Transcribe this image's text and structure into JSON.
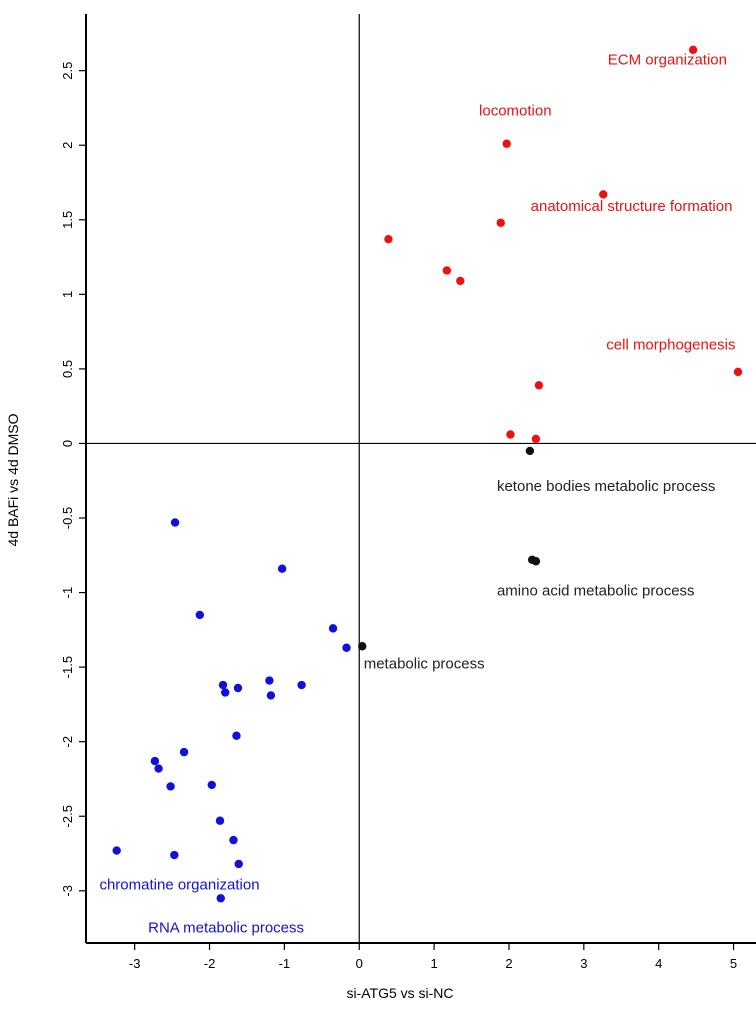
{
  "chart_data": {
    "type": "scatter",
    "title": "",
    "xlabel": "si-ATG5 vs si-NC",
    "ylabel": "4d BAFi vs 4d DMSO",
    "xlim": [
      -3.65,
      5.3
    ],
    "ylim": [
      -3.35,
      2.88
    ],
    "grid": false,
    "reference_lines": {
      "x": 0,
      "y": 0
    },
    "x_ticks": [
      -3,
      -2,
      -1,
      0,
      1,
      2,
      3,
      4,
      5
    ],
    "x_tick_labels": [
      "-3",
      "-2",
      "-1",
      "0",
      "1",
      "2",
      "3",
      "4",
      "5"
    ],
    "y_ticks": [
      -3,
      -2.5,
      -2,
      -1.5,
      -1,
      -0.5,
      0,
      0.5,
      1,
      1.5,
      2,
      2.5
    ],
    "y_tick_labels": [
      "-3",
      "-2.5",
      "-2",
      "-1.5",
      "-1",
      "-0.5",
      "0",
      "0.5",
      "1",
      "1.5",
      "2",
      "2.5"
    ],
    "colors": {
      "up": "#ee1111",
      "down": "#1111dd",
      "other": "#111111"
    },
    "series": [
      {
        "group": "up",
        "color": "#ee1111",
        "points": [
          {
            "x": 4.46,
            "y": 2.64
          },
          {
            "x": 1.97,
            "y": 2.01
          },
          {
            "x": 3.26,
            "y": 1.67
          },
          {
            "x": 1.89,
            "y": 1.48
          },
          {
            "x": 0.39,
            "y": 1.37
          },
          {
            "x": 1.17,
            "y": 1.16
          },
          {
            "x": 1.35,
            "y": 1.09
          },
          {
            "x": 5.06,
            "y": 0.48
          },
          {
            "x": 2.4,
            "y": 0.39
          },
          {
            "x": 2.02,
            "y": 0.06
          },
          {
            "x": 2.36,
            "y": 0.03
          }
        ]
      },
      {
        "group": "down",
        "color": "#1111dd",
        "points": [
          {
            "x": -2.46,
            "y": -0.53
          },
          {
            "x": -1.03,
            "y": -0.84
          },
          {
            "x": -2.13,
            "y": -1.15
          },
          {
            "x": -0.35,
            "y": -1.24
          },
          {
            "x": -0.17,
            "y": -1.37
          },
          {
            "x": -1.2,
            "y": -1.59
          },
          {
            "x": -0.77,
            "y": -1.62
          },
          {
            "x": -1.82,
            "y": -1.62
          },
          {
            "x": -1.62,
            "y": -1.64
          },
          {
            "x": -1.79,
            "y": -1.67
          },
          {
            "x": -1.18,
            "y": -1.69
          },
          {
            "x": -1.64,
            "y": -1.96
          },
          {
            "x": -2.34,
            "y": -2.07
          },
          {
            "x": -2.73,
            "y": -2.13
          },
          {
            "x": -2.68,
            "y": -2.18
          },
          {
            "x": -2.52,
            "y": -2.3
          },
          {
            "x": -1.97,
            "y": -2.29
          },
          {
            "x": -1.86,
            "y": -2.53
          },
          {
            "x": -1.68,
            "y": -2.66
          },
          {
            "x": -3.24,
            "y": -2.73
          },
          {
            "x": -2.47,
            "y": -2.76
          },
          {
            "x": -1.61,
            "y": -2.82
          },
          {
            "x": -1.85,
            "y": -3.05
          }
        ]
      },
      {
        "group": "other",
        "color": "#111111",
        "points": [
          {
            "x": 2.28,
            "y": -0.05
          },
          {
            "x": 2.31,
            "y": -0.78
          },
          {
            "x": 2.36,
            "y": -0.79
          },
          {
            "x": 0.04,
            "y": -1.36
          }
        ]
      }
    ],
    "annotations": [
      {
        "text": "ECM organization",
        "x": 3.32,
        "y": 2.54,
        "color": "#ee1111"
      },
      {
        "text": "locomotion",
        "x": 1.6,
        "y": 2.2,
        "color": "#ee1111"
      },
      {
        "text": "anatomical structure formation",
        "x": 2.29,
        "y": 1.56,
        "color": "#ee1111"
      },
      {
        "text": "cell morphogenesis",
        "x": 3.3,
        "y": 0.63,
        "color": "#ee1111"
      },
      {
        "text": "ketone bodies metabolic process",
        "x": 1.84,
        "y": -0.32,
        "color": "#222222"
      },
      {
        "text": "amino acid metabolic process",
        "x": 1.84,
        "y": -1.02,
        "color": "#222222"
      },
      {
        "text": "metabolic process",
        "x": 0.06,
        "y": -1.51,
        "color": "#222222"
      },
      {
        "text": "chromatine organization",
        "x": -3.47,
        "y": -2.99,
        "color": "#1111dd"
      },
      {
        "text": "RNA metabolic process",
        "x": -2.82,
        "y": -3.28,
        "color": "#1111dd"
      }
    ]
  }
}
